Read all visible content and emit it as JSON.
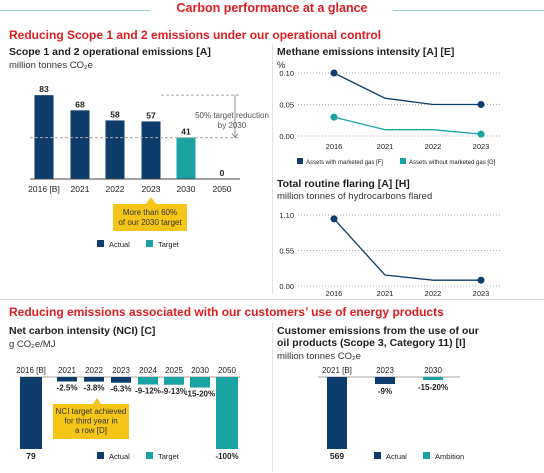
{
  "page": {
    "title": "Carbon performance at a glance",
    "section1": "Reducing Scope 1 and 2 emissions under our operational control",
    "section2": "Reducing emissions associated with our customers’ use of energy products"
  },
  "colors": {
    "actual": "#0e3d6b",
    "target": "#1aa3a3",
    "red": "#dd1d21",
    "callout": "#f5c518",
    "line_teal": "#1aa3a3"
  },
  "chart_data": [
    {
      "id": "scope12",
      "type": "bar",
      "title": "Scope 1 and 2 operational emissions [A]",
      "subtitle": "million tonnes CO₂e",
      "categories": [
        "2016 [B]",
        "2021",
        "2022",
        "2023",
        "2030",
        "2050"
      ],
      "values": [
        83,
        68,
        58,
        57,
        41,
        0
      ],
      "kinds": [
        "actual",
        "actual",
        "actual",
        "actual",
        "target",
        "target"
      ],
      "value_labels": [
        "83",
        "68",
        "58",
        "57",
        "41",
        "0"
      ],
      "annotation": "50% target reduction by 2030",
      "callout": "More than 60% of our 2030 target",
      "legend": [
        "Actual",
        "Target"
      ]
    },
    {
      "id": "methane",
      "type": "line",
      "title": "Methane emissions intensity [A] [E]",
      "ylabel": "%",
      "x": [
        "2016",
        "2021",
        "2022",
        "2023"
      ],
      "yticks": [
        "0.10",
        "0.05",
        "0.00"
      ],
      "ylim": [
        0,
        0.1
      ],
      "series": [
        {
          "name": "Assets with marketed gas [F]",
          "values": [
            0.1,
            0.06,
            0.05,
            0.05
          ]
        },
        {
          "name": "Assets without marketed gas [G]",
          "values": [
            0.03,
            0.01,
            0.01,
            0.003
          ]
        }
      ]
    },
    {
      "id": "flaring",
      "type": "line",
      "title": "Total routine flaring [A] [H]",
      "subtitle": "million tonnes of hydrocarbons flared",
      "x": [
        "2016",
        "2021",
        "2022",
        "2023"
      ],
      "yticks": [
        "1.10",
        "0.55",
        "0.00"
      ],
      "ylim": [
        0,
        1.1
      ],
      "series": [
        {
          "values": [
            1.04,
            0.17,
            0.09,
            0.09
          ]
        }
      ]
    },
    {
      "id": "nci",
      "type": "bar",
      "title": "Net carbon intensity (NCI) [C]",
      "subtitle": "g CO₂e/MJ",
      "categories": [
        "2016 [B]",
        "2021",
        "2022",
        "2023",
        "2024",
        "2025",
        "2030",
        "2050"
      ],
      "base_value": 79,
      "base_label": "79",
      "reductions_pct": [
        0,
        2.5,
        3.8,
        6.3,
        10.5,
        11,
        17.5,
        100
      ],
      "value_labels": [
        "",
        "-2.5%",
        "-3.8%",
        "-6.3%",
        "-9-12%",
        "-9-13%",
        "-15-20%",
        "-100%"
      ],
      "kinds": [
        "actual",
        "actual",
        "actual",
        "actual",
        "target",
        "target",
        "target",
        "target"
      ],
      "callout": "NCI target achieved for third year in a row [D]",
      "legend": [
        "Actual",
        "Target"
      ]
    },
    {
      "id": "customer",
      "type": "bar",
      "title": "Customer emissions from the use of our oil products (Scope 3, Category 11) [I]",
      "subtitle": "million tonnes CO₂e",
      "categories": [
        "2021 [B]",
        "2023",
        "2030"
      ],
      "base_value": 569,
      "base_label": "569",
      "reductions_pct": [
        0,
        9,
        17.5
      ],
      "value_labels": [
        "",
        "-9%",
        "-15-20%"
      ],
      "kinds": [
        "actual",
        "actual",
        "target"
      ],
      "legend": [
        "Actual",
        "Ambition"
      ]
    }
  ]
}
